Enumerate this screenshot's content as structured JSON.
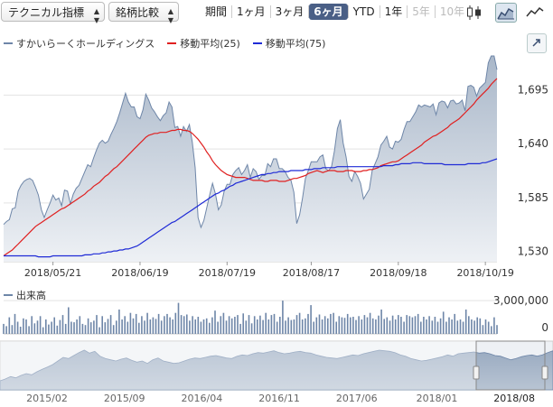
{
  "toolbar": {
    "technical_label": "テクニカル指標",
    "compare_label": "銘柄比較",
    "period_label": "期間",
    "periods": [
      "1ヶ月",
      "3ヶ月",
      "6ヶ月",
      "YTD",
      "1年",
      "5年",
      "10年"
    ],
    "active_period": "6ヶ月",
    "disabled_periods": [
      "5年",
      "10年"
    ]
  },
  "legend": [
    {
      "name": "すかいらーくホールディングス",
      "color": "#6e86a8"
    },
    {
      "name": "移動平均(25)",
      "color": "#e02020"
    },
    {
      "name": "移動平均(75)",
      "color": "#1f2bd6"
    }
  ],
  "volume_label": "出来高",
  "chart_data": [
    {
      "type": "area",
      "title": "",
      "ylim": [
        1525,
        1735
      ],
      "y_ticks": [
        1530,
        1585,
        1640,
        1695
      ],
      "y_tick_labels": [
        "1,530",
        "1,585",
        "1,640",
        "1,695"
      ],
      "x_ticks": [
        "2018/05/21",
        "2018/06/19",
        "2018/07/19",
        "2018/08/17",
        "2018/09/18",
        "2018/10/19"
      ],
      "x_tick_index": [
        17,
        47,
        77,
        106,
        136,
        166
      ],
      "grid": true,
      "series": [
        {
          "name": "すかいらーくホールディングス",
          "color": "#6e86a8",
          "values": [
            1563,
            1566,
            1568,
            1579,
            1580,
            1597,
            1603,
            1607,
            1609,
            1610,
            1608,
            1601,
            1593,
            1578,
            1570,
            1578,
            1585,
            1593,
            1588,
            1590,
            1582,
            1598,
            1597,
            1584,
            1594,
            1600,
            1603,
            1610,
            1617,
            1624,
            1622,
            1631,
            1639,
            1646,
            1649,
            1646,
            1648,
            1655,
            1661,
            1668,
            1677,
            1687,
            1697,
            1688,
            1683,
            1683,
            1673,
            1671,
            1680,
            1696,
            1690,
            1682,
            1678,
            1673,
            1669,
            1674,
            1677,
            1688,
            1683,
            1662,
            1663,
            1653,
            1663,
            1658,
            1665,
            1647,
            1621,
            1570,
            1560,
            1567,
            1580,
            1593,
            1605,
            1594,
            1578,
            1583,
            1597,
            1604,
            1604,
            1614,
            1618,
            1621,
            1614,
            1618,
            1624,
            1611,
            1620,
            1617,
            1609,
            1613,
            1613,
            1625,
            1622,
            1630,
            1630,
            1620,
            1620,
            1617,
            1611,
            1608,
            1596,
            1564,
            1573,
            1590,
            1610,
            1618,
            1627,
            1627,
            1627,
            1632,
            1634,
            1620,
            1618,
            1622,
            1638,
            1661,
            1670,
            1646,
            1632,
            1612,
            1607,
            1617,
            1612,
            1605,
            1589,
            1594,
            1599,
            1618,
            1625,
            1632,
            1644,
            1648,
            1653,
            1642,
            1640,
            1648,
            1647,
            1650,
            1660,
            1668,
            1668,
            1673,
            1678,
            1685,
            1683,
            1685,
            1684,
            1683,
            1686,
            1675,
            1687,
            1689,
            1688,
            1682,
            1689,
            1690,
            1686,
            1687,
            1690,
            1679,
            1704,
            1705,
            1703,
            1694,
            1702,
            1705,
            1708,
            1728,
            1735,
            1735,
            1721
          ]
        },
        {
          "name": "移動平均(25)",
          "color": "#e02020",
          "values": [
            1531,
            1533,
            1535,
            1537,
            1540,
            1543,
            1546,
            1549,
            1552,
            1555,
            1558,
            1561,
            1563,
            1565,
            1567,
            1569,
            1571,
            1573,
            1575,
            1577,
            1579,
            1580,
            1582,
            1584,
            1586,
            1588,
            1590,
            1592,
            1594,
            1597,
            1599,
            1602,
            1604,
            1606,
            1609,
            1612,
            1614,
            1617,
            1620,
            1622,
            1625,
            1628,
            1631,
            1634,
            1637,
            1640,
            1643,
            1646,
            1649,
            1652,
            1654,
            1655,
            1656,
            1656,
            1657,
            1657,
            1657,
            1658,
            1659,
            1659,
            1660,
            1660,
            1659,
            1659,
            1658,
            1656,
            1653,
            1650,
            1646,
            1642,
            1637,
            1633,
            1628,
            1624,
            1621,
            1618,
            1616,
            1614,
            1613,
            1612,
            1611,
            1611,
            1611,
            1611,
            1610,
            1609,
            1608,
            1608,
            1608,
            1608,
            1607,
            1607,
            1608,
            1608,
            1608,
            1607,
            1607,
            1607,
            1608,
            1609,
            1610,
            1610,
            1611,
            1612,
            1613,
            1615,
            1616,
            1617,
            1618,
            1617,
            1616,
            1617,
            1618,
            1618,
            1618,
            1617,
            1617,
            1617,
            1618,
            1618,
            1618,
            1617,
            1617,
            1617,
            1618,
            1618,
            1619,
            1619,
            1620,
            1621,
            1623,
            1624,
            1625,
            1626,
            1627,
            1627,
            1628,
            1630,
            1632,
            1634,
            1636,
            1638,
            1640,
            1642,
            1644,
            1647,
            1649,
            1651,
            1653,
            1654,
            1656,
            1658,
            1660,
            1662,
            1665,
            1667,
            1669,
            1671,
            1674,
            1677,
            1680,
            1683,
            1686,
            1690,
            1693,
            1696,
            1699,
            1702,
            1706,
            1709,
            1712
          ]
        },
        {
          "name": "移動平均(75)",
          "color": "#1f2bd6",
          "values": [
            1531,
            1531,
            1531,
            1531,
            1531,
            1531,
            1531,
            1531,
            1531,
            1531,
            1531,
            1531,
            1530,
            1530,
            1530,
            1530,
            1530,
            1531,
            1531,
            1531,
            1531,
            1531,
            1531,
            1531,
            1531,
            1531,
            1531,
            1531,
            1532,
            1532,
            1532,
            1533,
            1533,
            1533,
            1534,
            1534,
            1535,
            1535,
            1536,
            1536,
            1537,
            1537,
            1538,
            1538,
            1539,
            1540,
            1541,
            1543,
            1545,
            1547,
            1549,
            1551,
            1553,
            1555,
            1557,
            1559,
            1561,
            1563,
            1565,
            1566,
            1568,
            1570,
            1572,
            1574,
            1576,
            1578,
            1580,
            1582,
            1584,
            1586,
            1588,
            1590,
            1592,
            1594,
            1595,
            1597,
            1598,
            1600,
            1602,
            1603,
            1605,
            1606,
            1607,
            1608,
            1609,
            1610,
            1611,
            1612,
            1613,
            1614,
            1614,
            1615,
            1615,
            1616,
            1616,
            1617,
            1617,
            1617,
            1617,
            1618,
            1618,
            1618,
            1618,
            1618,
            1619,
            1619,
            1619,
            1620,
            1620,
            1620,
            1621,
            1621,
            1621,
            1621,
            1621,
            1622,
            1622,
            1622,
            1622,
            1622,
            1622,
            1622,
            1622,
            1622,
            1622,
            1622,
            1622,
            1622,
            1622,
            1622,
            1622,
            1623,
            1623,
            1623,
            1623,
            1624,
            1624,
            1625,
            1625,
            1625,
            1625,
            1626,
            1626,
            1626,
            1626,
            1625,
            1625,
            1625,
            1625,
            1625,
            1625,
            1625,
            1624,
            1624,
            1624,
            1624,
            1624,
            1624,
            1624,
            1624,
            1625,
            1625,
            1625,
            1625,
            1625,
            1626,
            1626,
            1627,
            1628,
            1629,
            1630
          ]
        }
      ]
    },
    {
      "type": "bar",
      "title": "",
      "ylim": [
        0,
        3500000
      ],
      "y_ticks": [
        0,
        3000000
      ],
      "y_tick_labels": [
        "0",
        "3,000,000"
      ],
      "series": [
        {
          "name": "出来高",
          "color": "#6e86a8",
          "values": [
            900000,
            700000,
            1500000,
            800000,
            1800000,
            1100000,
            650000,
            1400000,
            1300000,
            700000,
            1600000,
            950000,
            1200000,
            1600000,
            600000,
            1300000,
            850000,
            1100000,
            1500000,
            750000,
            1250000,
            1700000,
            900000,
            2400000,
            1100000,
            1050000,
            1300000,
            1600000,
            900000,
            800000,
            1400000,
            1050000,
            1200000,
            1700000,
            600000,
            1600000,
            1050000,
            1350000,
            1700000,
            800000,
            1200000,
            2200000,
            1300000,
            1600000,
            1100000,
            1900000,
            1400000,
            1800000,
            1000000,
            1600000,
            1200000,
            1900000,
            1300000,
            1500000,
            1350000,
            1800000,
            1200000,
            1600000,
            1800000,
            1500000,
            1300000,
            1900000,
            2800000,
            1700000,
            1600000,
            1750000,
            1200000,
            1600000,
            1300000,
            1550000,
            1100000,
            1300000,
            1400000,
            1000000,
            1500000,
            2100000,
            1100000,
            1600000,
            1900000,
            1200000,
            1600000,
            1400000,
            1550000,
            1700000,
            900000,
            1850000,
            1200000,
            1700000,
            950000,
            1600000,
            1300000,
            1650000,
            1250000,
            1900000,
            1300000,
            1700000,
            1800000,
            1100000,
            1550000,
            3000000,
            1200000,
            1500000,
            1250000,
            1300000,
            1700000,
            1900000,
            1300000,
            1400000,
            1800000,
            2600000,
            1100000,
            1500000,
            1750000,
            1300000,
            1600000,
            1400000,
            1800000,
            1900000,
            1100000,
            1600000,
            1500000,
            1450000,
            1800000,
            1500000,
            1550000,
            1250000,
            1600000,
            1300000,
            1700000,
            1500000,
            1900000,
            1400000,
            1300000,
            1650000,
            2200000,
            1350000,
            1500000,
            1200000,
            1650000,
            1300000,
            1700000,
            1550000,
            1100000,
            1700000,
            1600000,
            1500000,
            1600000,
            1800000,
            1100000,
            1550000,
            1300000,
            1600000,
            1200000,
            1550000,
            1100000,
            1400000,
            2000000,
            1100000,
            1500000,
            1300000,
            1800000,
            1200000,
            1300000,
            1100000,
            2200000,
            1600000,
            1300000,
            1200000,
            1500000,
            1400000,
            800000,
            1300000,
            1100000,
            700000,
            1500000,
            800000
          ]
        }
      ]
    },
    {
      "type": "area",
      "title": "",
      "x_ticks": [
        "2015/02",
        "2015/09",
        "2016/04",
        "2016/11",
        "2017/06",
        "2018/01",
        "2018/08"
      ],
      "x_tick_frac": [
        0.085,
        0.225,
        0.365,
        0.505,
        0.645,
        0.79,
        0.93
      ],
      "series": [
        {
          "name": "すかいらーくホールディングス",
          "color": "#6e86a8",
          "values": [
            1230,
            1260,
            1300,
            1280,
            1320,
            1350,
            1330,
            1380,
            1420,
            1460,
            1500,
            1560,
            1620,
            1600,
            1650,
            1700,
            1740,
            1690,
            1720,
            1640,
            1600,
            1580,
            1560,
            1590,
            1610,
            1570,
            1540,
            1560,
            1520,
            1580,
            1610,
            1560,
            1540,
            1520,
            1530,
            1560,
            1590,
            1610,
            1600,
            1620,
            1640,
            1650,
            1630,
            1610,
            1600,
            1640,
            1660,
            1650,
            1680,
            1700,
            1690,
            1710,
            1730,
            1700,
            1680,
            1690,
            1710,
            1720,
            1700,
            1690,
            1660,
            1640,
            1620,
            1610,
            1600,
            1620,
            1640,
            1660,
            1650,
            1680,
            1700,
            1720,
            1740,
            1730,
            1720,
            1700,
            1660,
            1640,
            1600,
            1580,
            1560,
            1570,
            1590,
            1610,
            1630,
            1660,
            1640,
            1680,
            1690,
            1700,
            1710,
            1690,
            1700,
            1680,
            1650,
            1640,
            1610,
            1580,
            1600,
            1630,
            1650,
            1660,
            1640,
            1660,
            1700,
            1730
          ]
        }
      ]
    }
  ]
}
